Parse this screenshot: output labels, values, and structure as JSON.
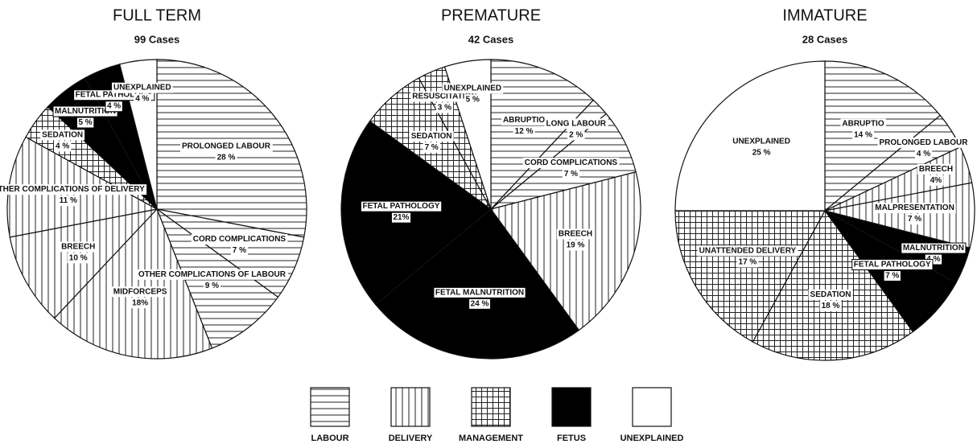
{
  "chart_data": [
    {
      "type": "pie",
      "title": "FULL TERM",
      "subtitle": "99 Cases",
      "categories": [
        "PROLONGED LABOUR",
        "CORD COMPLICATIONS",
        "OTHER COMPLICATIONS OF LABOUR",
        "MIDFORCEPS",
        "BREECH",
        "OTHER COMPLICATIONS OF DELIVERY",
        "SEDATION",
        "MALNUTRITION",
        "FETAL PATHOLOGY",
        "UNEXPLAINED"
      ],
      "values": [
        28,
        7,
        9,
        18,
        10,
        11,
        4,
        5,
        4,
        4
      ],
      "value_labels": [
        "28 %",
        "7 %",
        "9 %",
        "18%",
        "10 %",
        "11 %",
        "4 %",
        "5 %",
        "4 %",
        "4 %"
      ],
      "patterns": [
        "horizontal",
        "horizontal",
        "horizontal",
        "vertical",
        "vertical",
        "vertical",
        "grid",
        "solid",
        "solid",
        "blank"
      ]
    },
    {
      "type": "pie",
      "title": "PREMATURE",
      "subtitle": "42 Cases",
      "categories": [
        "ABRUPTIO",
        "LONG LABOUR",
        "CORD COMPLICATIONS",
        "BREECH",
        "FETAL MALNUTRITION",
        "FETAL PATHOLOGY",
        "SEDATION",
        "RESUSCITATION",
        "UNEXPLAINED"
      ],
      "values": [
        12,
        2,
        7,
        19,
        24,
        21,
        7,
        3,
        5
      ],
      "value_labels": [
        "12 %",
        "2 %",
        "7 %",
        "19 %",
        "24 %",
        "21%",
        "7 %",
        "3 %",
        "5 %"
      ],
      "patterns": [
        "horizontal",
        "horizontal",
        "horizontal",
        "vertical",
        "solid",
        "solid",
        "grid",
        "grid",
        "blank"
      ]
    },
    {
      "type": "pie",
      "title": "IMMATURE",
      "subtitle": "28 Cases",
      "categories": [
        "ABRUPTIO",
        "PROLONGED LABOUR",
        "BREECH",
        "MALPRESENTATION",
        "MALNUTRITION",
        "FETAL PATHOLOGY",
        "SEDATION",
        "UNATTENDED DELIVERY",
        "UNEXPLAINED"
      ],
      "values": [
        14,
        4,
        4,
        7,
        4,
        7,
        18,
        17,
        25
      ],
      "value_labels": [
        "14 %",
        "4 %",
        "4%",
        "7 %",
        "4 %",
        "7 %",
        "18 %",
        "17 %",
        "25 %"
      ],
      "patterns": [
        "horizontal",
        "horizontal",
        "vertical",
        "vertical",
        "solid",
        "solid",
        "grid",
        "grid",
        "blank"
      ]
    }
  ],
  "legend": [
    {
      "label": "LABOUR",
      "pattern": "horizontal"
    },
    {
      "label": "DELIVERY",
      "pattern": "vertical"
    },
    {
      "label": "MANAGEMENT",
      "pattern": "grid"
    },
    {
      "label": "FETUS",
      "pattern": "solid"
    },
    {
      "label": "UNEXPLAINED",
      "pattern": "blank"
    }
  ]
}
